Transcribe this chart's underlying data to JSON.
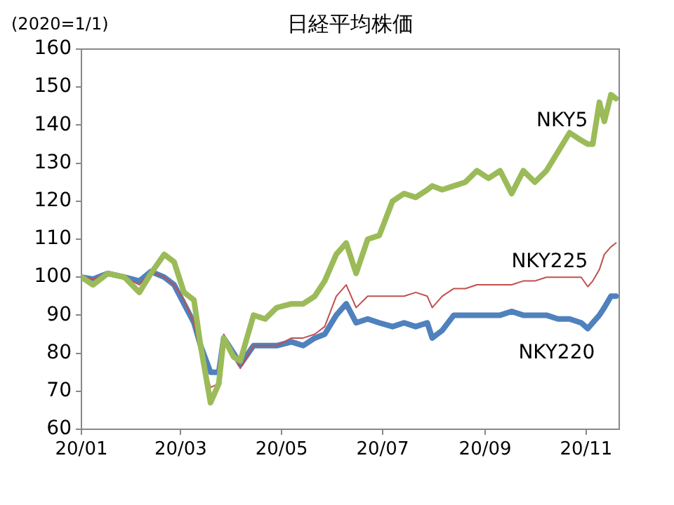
{
  "chart_data": {
    "type": "line",
    "title": "日経平均株価",
    "ylabel": "(2020=1/1)",
    "x": [
      "2020-01-01",
      "2020-01-08",
      "2020-01-17",
      "2020-01-27",
      "2020-02-05",
      "2020-02-12",
      "2020-02-20",
      "2020-02-26",
      "2020-03-03",
      "2020-03-09",
      "2020-03-13",
      "2020-03-19",
      "2020-03-24",
      "2020-03-27",
      "2020-04-02",
      "2020-04-06",
      "2020-04-14",
      "2020-04-21",
      "2020-04-28",
      "2020-05-07",
      "2020-05-14",
      "2020-05-21",
      "2020-05-27",
      "2020-06-03",
      "2020-06-09",
      "2020-06-15",
      "2020-06-22",
      "2020-06-29",
      "2020-07-07",
      "2020-07-14",
      "2020-07-21",
      "2020-07-28",
      "2020-07-31",
      "2020-08-06",
      "2020-08-13",
      "2020-08-20",
      "2020-08-27",
      "2020-09-03",
      "2020-09-10",
      "2020-09-17",
      "2020-09-24",
      "2020-10-01",
      "2020-10-08",
      "2020-10-15",
      "2020-10-22",
      "2020-10-29",
      "2020-11-02",
      "2020-11-05",
      "2020-11-09",
      "2020-11-12",
      "2020-11-16",
      "2020-11-19"
    ],
    "series": [
      {
        "name": "NKY5",
        "color": "#9bbb59",
        "values": [
          100,
          98,
          101,
          100,
          96,
          101,
          106,
          104,
          96,
          94,
          82,
          67,
          72,
          84,
          79,
          78,
          90,
          89,
          92,
          93,
          93,
          95,
          99,
          106,
          109,
          101,
          110,
          111,
          120,
          122,
          121,
          123,
          124,
          123,
          124,
          125,
          128,
          126,
          128,
          122,
          128,
          125,
          128,
          133,
          138,
          136,
          135,
          135,
          146,
          141,
          148,
          147
        ]
      },
      {
        "name": "NKY225",
        "color": "#c0504d",
        "values": [
          100,
          99.5,
          101,
          100,
          98,
          101.5,
          100,
          98,
          94,
          88,
          80,
          71,
          72,
          85,
          80,
          76,
          82,
          82,
          82,
          84,
          84,
          85,
          87,
          95,
          98,
          92,
          95,
          95,
          95,
          95,
          96,
          95,
          92,
          95,
          97,
          97,
          98,
          98,
          98,
          98,
          99,
          99,
          100,
          100,
          100,
          100,
          97.5,
          99,
          102,
          106,
          108,
          109
        ]
      },
      {
        "name": "NKY220",
        "color": "#4f81bd",
        "values": [
          100,
          99.5,
          101,
          100,
          99,
          101.5,
          100,
          98,
          93,
          88,
          82,
          75,
          75,
          84,
          80,
          77,
          82,
          82,
          82,
          83,
          82,
          84,
          85,
          90,
          93,
          88,
          89,
          88,
          87,
          88,
          87,
          88,
          84,
          86,
          90,
          90,
          90,
          90,
          90,
          91,
          90,
          90,
          90,
          89,
          89,
          88,
          86.5,
          88,
          90,
          92,
          95,
          95
        ]
      }
    ],
    "xlim": [
      "2020-01-01",
      "2020-11-21"
    ],
    "xticks": [
      {
        "value": "2020-01-01",
        "label": "20/01"
      },
      {
        "value": "2020-03-01",
        "label": "20/03"
      },
      {
        "value": "2020-05-01",
        "label": "20/05"
      },
      {
        "value": "2020-07-01",
        "label": "20/07"
      },
      {
        "value": "2020-09-01",
        "label": "20/09"
      },
      {
        "value": "2020-11-01",
        "label": "20/11"
      }
    ],
    "ylim": [
      60,
      160
    ],
    "yticks": [
      60,
      70,
      80,
      90,
      100,
      110,
      120,
      130,
      140,
      150,
      160
    ],
    "grid": false,
    "legend": false,
    "marker": "none",
    "line_style": "solid"
  }
}
